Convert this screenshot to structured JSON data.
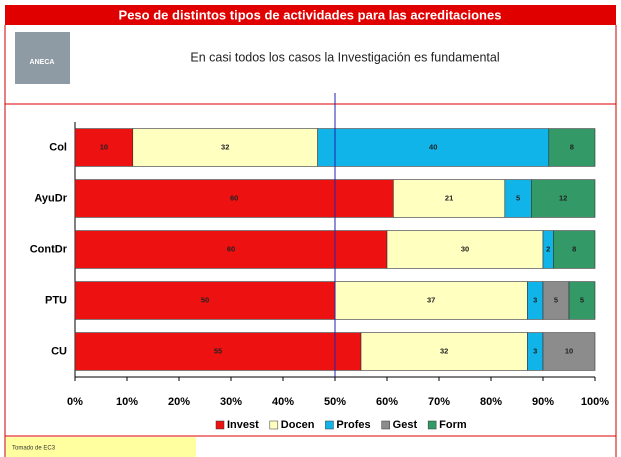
{
  "chart_data": {
    "type": "bar",
    "orientation": "horizontal",
    "stacked": "percent",
    "title": "Peso de distintos tipos de actividades para las acreditaciones",
    "subtitle": "En casi todos los casos la Investigación es fundamental",
    "logo": "ANECA",
    "source": "Tomado de EC3",
    "categories": [
      "Col",
      "AyuDr",
      "ContDr",
      "PTU",
      "CU"
    ],
    "series": [
      {
        "name": "Invest",
        "color": "#ee1111",
        "values": [
          10,
          60,
          60,
          50,
          55
        ]
      },
      {
        "name": "Docen",
        "color": "#ffffc0",
        "values": [
          32,
          21,
          30,
          37,
          32
        ]
      },
      {
        "name": "Profes",
        "color": "#11b4e8",
        "values": [
          40,
          5,
          2,
          3,
          3
        ]
      },
      {
        "name": "Gest",
        "color": "#8c8c8c",
        "values": [
          null,
          null,
          null,
          5,
          10
        ]
      },
      {
        "name": "Form",
        "color": "#339966",
        "values": [
          8,
          12,
          8,
          5,
          null
        ]
      }
    ],
    "xlim": [
      0,
      100
    ],
    "xticks": [
      {
        "value": 0,
        "label": "0%"
      },
      {
        "value": 10,
        "label": "10%"
      },
      {
        "value": 20,
        "label": "20%"
      },
      {
        "value": 30,
        "label": "30%"
      },
      {
        "value": 40,
        "label": "40%"
      },
      {
        "value": 50,
        "label": "50%"
      },
      {
        "value": 60,
        "label": "60%"
      },
      {
        "value": 70,
        "label": "70%"
      },
      {
        "value": 80,
        "label": "80%"
      },
      {
        "value": 90,
        "label": "90%"
      },
      {
        "value": 100,
        "label": "100%"
      }
    ],
    "reference_line": 50,
    "legend": "bottom"
  }
}
